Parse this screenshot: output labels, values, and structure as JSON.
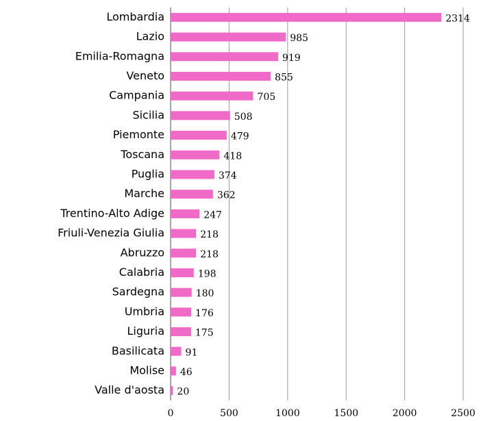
{
  "chart_data": {
    "type": "barh",
    "categories": [
      "Lombardia",
      "Lazio",
      "Emilia-Romagna",
      "Veneto",
      "Campania",
      "Sicilia",
      "Piemonte",
      "Toscana",
      "Puglia",
      "Marche",
      "Trentino-Alto Adige",
      "Friuli-Venezia Giulia",
      "Abruzzo",
      "Calabria",
      "Sardegna",
      "Umbria",
      "Liguria",
      "Basilicata",
      "Molise",
      "Valle d'aosta"
    ],
    "values": [
      2314,
      985,
      919,
      855,
      705,
      508,
      479,
      418,
      374,
      362,
      247,
      218,
      218,
      198,
      180,
      176,
      175,
      91,
      46,
      20
    ],
    "color": "#f06ac8",
    "xlim": [
      0,
      2500
    ],
    "xticks": [
      0,
      500,
      1000,
      1500,
      2000,
      2500
    ],
    "grid": true
  }
}
